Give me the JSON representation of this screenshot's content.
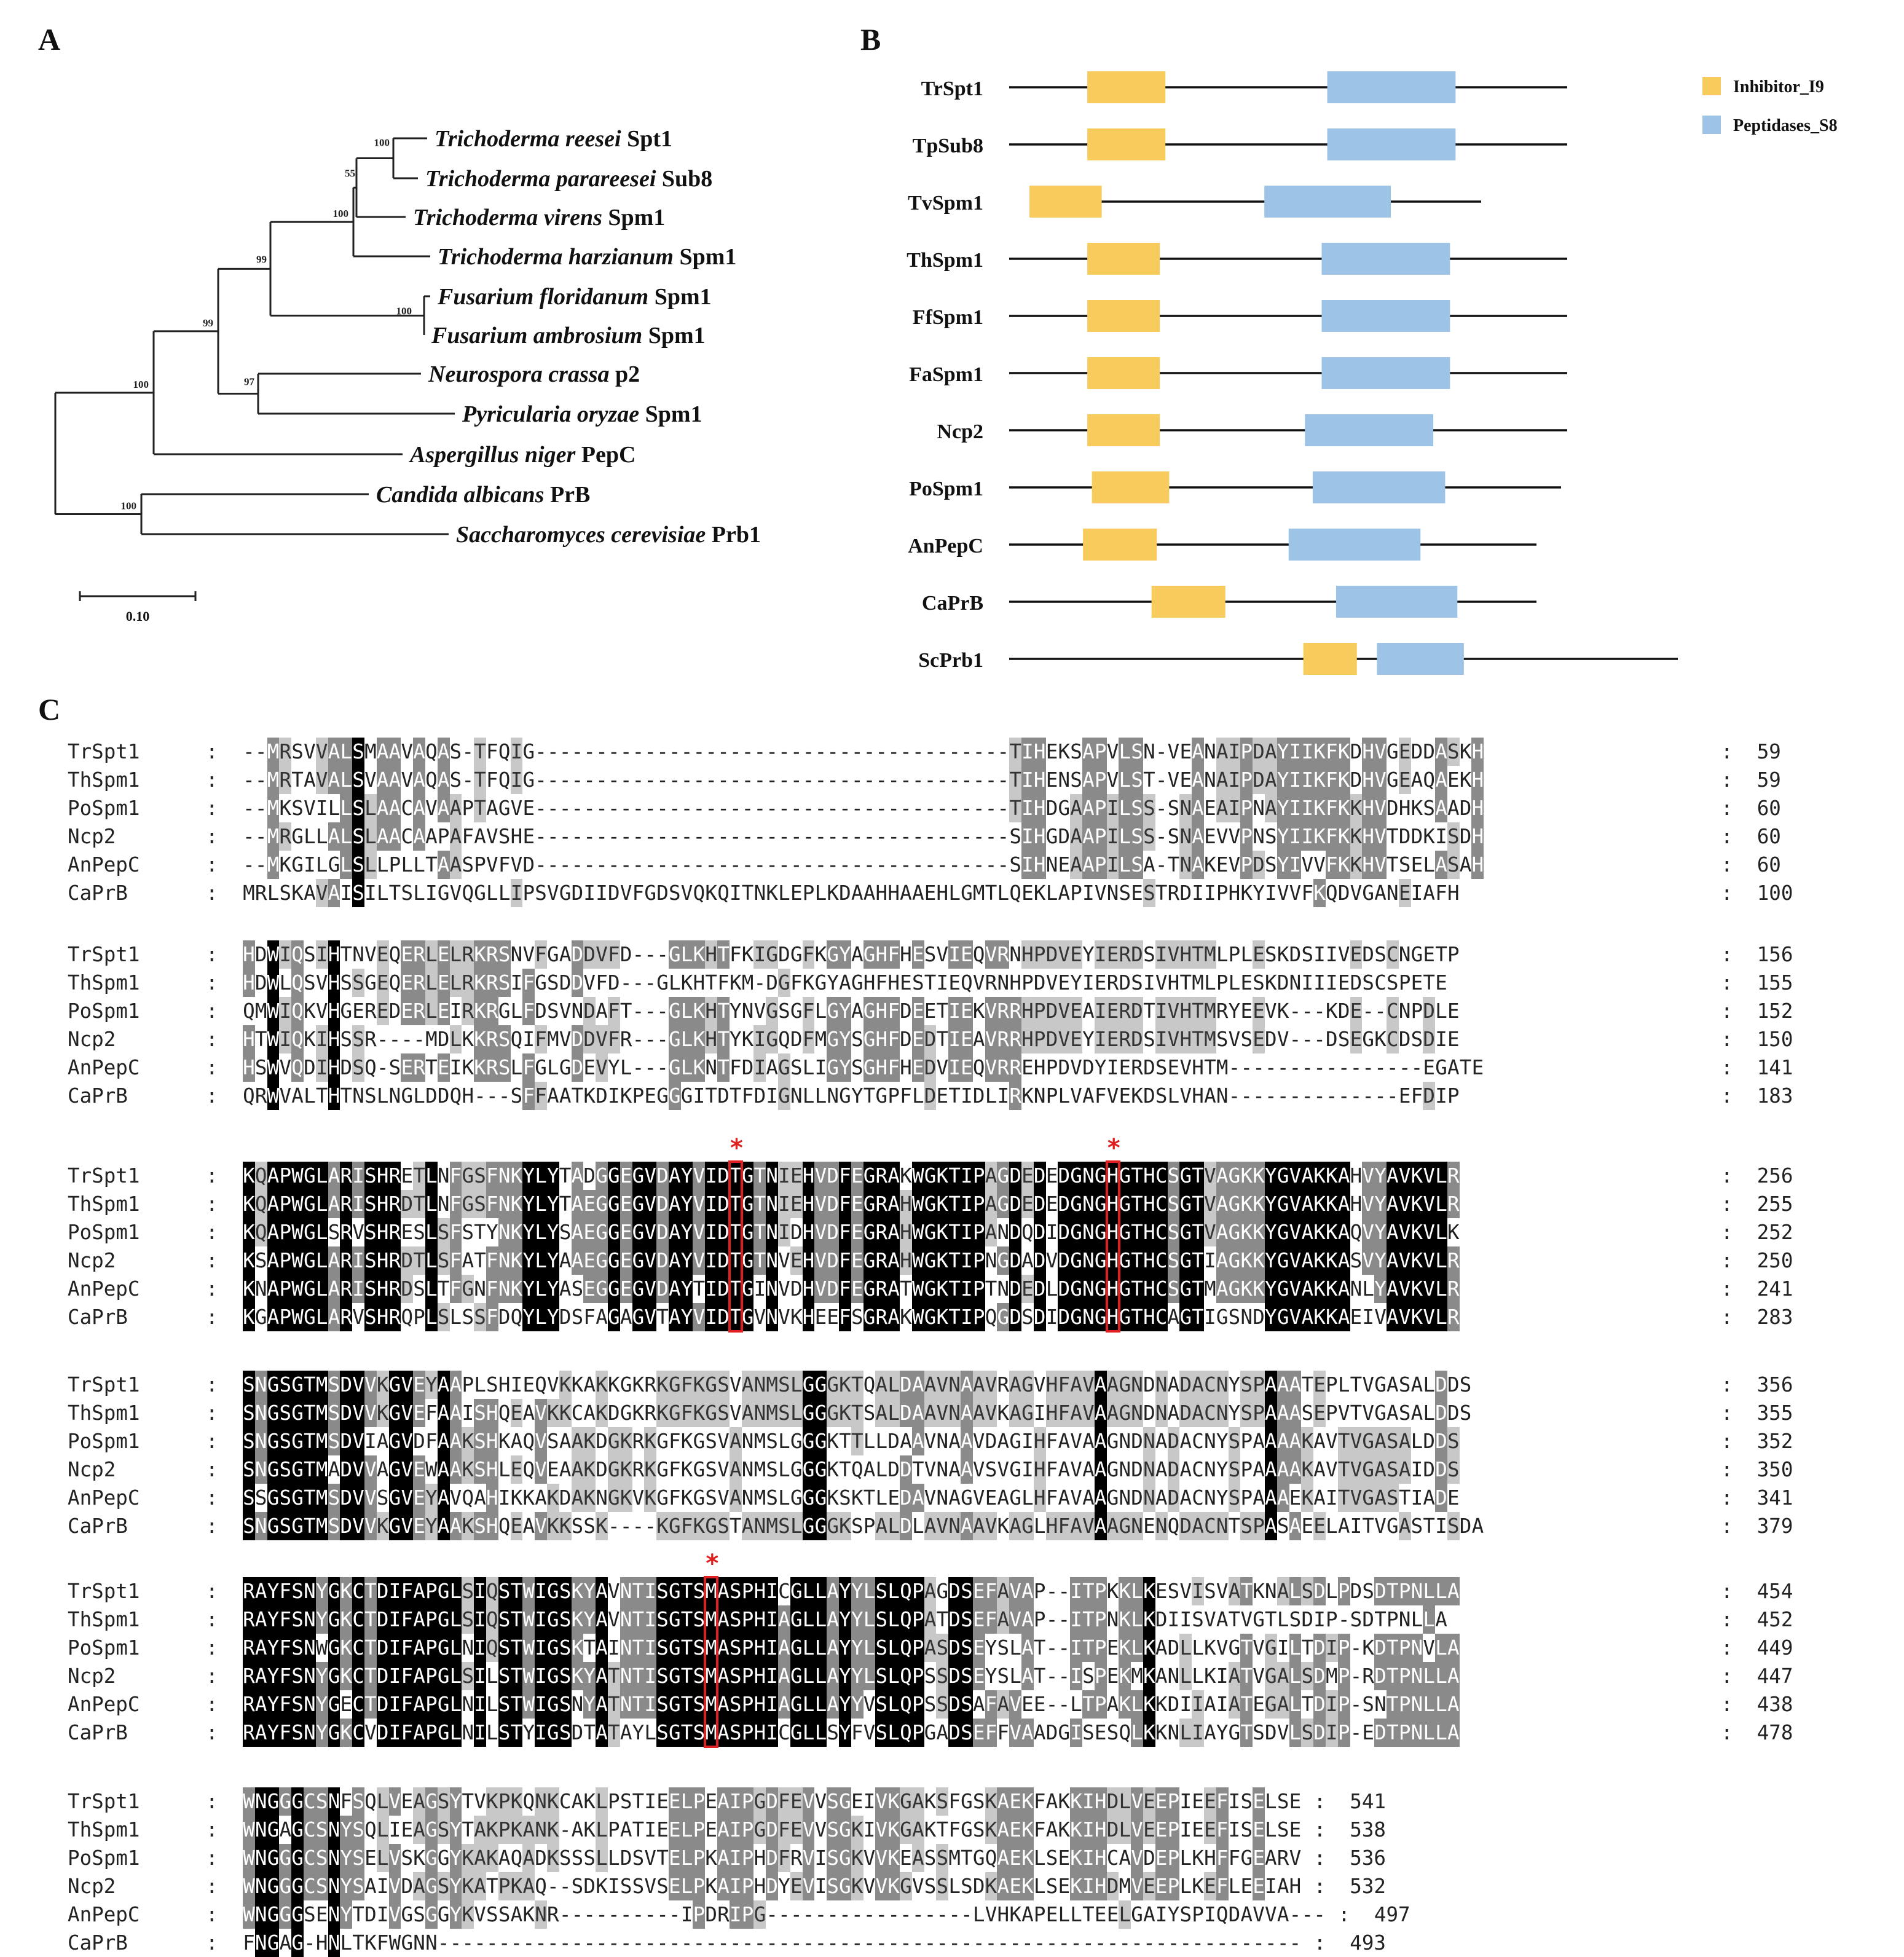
{
  "panels": {
    "a": "A",
    "b": "B",
    "c": "C"
  },
  "tree": {
    "taxa": [
      {
        "genus": "Trichoderma reesei",
        "protein": "Spt1"
      },
      {
        "genus": "Trichoderma parareesei",
        "protein": "Sub8"
      },
      {
        "genus": "Trichoderma virens",
        "protein": "Spm1"
      },
      {
        "genus": "Trichoderma harzianum",
        "protein": "Spm1"
      },
      {
        "genus": "Fusarium floridanum",
        "protein": "Spm1"
      },
      {
        "genus": "Fusarium ambrosium",
        "protein": "Spm1"
      },
      {
        "genus": "Neurospora crassa",
        "protein": "p2"
      },
      {
        "genus": "Pyricularia oryzae",
        "protein": "Spm1"
      },
      {
        "genus": "Aspergillus niger",
        "protein": "PepC"
      },
      {
        "genus": "Candida albicans",
        "protein": "PrB"
      },
      {
        "genus": "Saccharomyces cerevisiae",
        "protein": "Prb1"
      }
    ],
    "bootstrap": [
      "100",
      "55",
      "100",
      "99",
      "100",
      "99",
      "97",
      "100",
      "100"
    ],
    "scale_label": "0.10",
    "scale_value": 0.1
  },
  "domains": {
    "legend": [
      {
        "label": "Inhibitor_I9",
        "color": "#f7cc5c"
      },
      {
        "label": "Peptidases_S8",
        "color": "#9dc3e6"
      }
    ],
    "proteins": [
      {
        "name": "TrSpt1",
        "length": 1.0,
        "i9": [
          0.14,
          0.28
        ],
        "s8": [
          0.57,
          0.8
        ]
      },
      {
        "name": "TpSub8",
        "length": 1.0,
        "i9": [
          0.14,
          0.28
        ],
        "s8": [
          0.57,
          0.8
        ]
      },
      {
        "name": "TvSpm1",
        "length": 1.0,
        "i9": [
          0.0,
          0.16
        ],
        "s8": [
          0.52,
          0.8
        ]
      },
      {
        "name": "ThSpm1",
        "length": 1.0,
        "i9": [
          0.14,
          0.27
        ],
        "s8": [
          0.56,
          0.79
        ]
      },
      {
        "name": "FfSpm1",
        "length": 1.0,
        "i9": [
          0.14,
          0.27
        ],
        "s8": [
          0.56,
          0.79
        ]
      },
      {
        "name": "FaSpm1",
        "length": 1.0,
        "i9": [
          0.14,
          0.27
        ],
        "s8": [
          0.56,
          0.79
        ]
      },
      {
        "name": "Ncp2",
        "length": 1.0,
        "i9": [
          0.14,
          0.27
        ],
        "s8": [
          0.53,
          0.76
        ]
      },
      {
        "name": "PoSpm1",
        "length": 1.0,
        "i9": [
          0.15,
          0.29
        ],
        "s8": [
          0.55,
          0.79
        ]
      },
      {
        "name": "AnPepC",
        "length": 1.0,
        "i9": [
          0.14,
          0.28
        ],
        "s8": [
          0.53,
          0.78
        ]
      },
      {
        "name": "CaPrB",
        "length": 1.0,
        "i9": [
          0.27,
          0.41
        ],
        "s8": [
          0.62,
          0.85
        ]
      },
      {
        "name": "ScPrb1",
        "length": 1.0,
        "i9": [
          0.44,
          0.52
        ],
        "s8": [
          0.55,
          0.68
        ]
      }
    ]
  },
  "alignment": {
    "blocks": [
      {
        "rows": [
          {
            "name": "TrSpt1",
            "seq": "--MRSVVALSMAAVAQAS-TFQIG---------------------------------------TIHEKSAPVLSN-VEANAIPDAYIIKFKDHVGEDDASKH",
            "end": "59"
          },
          {
            "name": "ThSpm1",
            "seq": "--MRTAVALSVAAVAQAS-TFQIG---------------------------------------TIHENSAPVLST-VEANAIPDAYIIKFKDHVGEAQAEKH",
            "end": "59"
          },
          {
            "name": "PoSpm1",
            "seq": "--MKSVILLSLAACAVAAPTAGVE---------------------------------------TIHDGAAPILSS-SNAEAIPNAYIIKFKKHVDHKSAADH",
            "end": "60"
          },
          {
            "name": "Ncp2",
            "seq": "--MRGLLALSLAACAAPAFAVSHE---------------------------------------SIHGDAAPILSS-SNAEVVPNSYIIKFKKHVTDDKISDH",
            "end": "60"
          },
          {
            "name": "AnPepC",
            "seq": "--MKGILGLSLLPLLTAASPVFVD---------------------------------------SIHNEAAPILSA-TNAKEVPDSYIVVFKKHVTSELASAH",
            "end": "60"
          },
          {
            "name": "CaPrB",
            "seq": "MRLSKAVAISILTSLIGVQGLLIPSVGDIIDVFGDSVQKQITNKLEPLKDAAHHAAEHLGMTLQEKLAPIVNSESTRDIIPHKYIVVFKQDVGANEIAFH",
            "end": "100"
          }
        ]
      },
      {
        "rows": [
          {
            "name": "TrSpt1",
            "seq": "HDWIQSIHTNVEQERLELRKRSNVFGADDVFD---GLKHTFKIGDGFKGYAGHFHESVIEQVRNHPDVEYIERDSIVHTMLPLESKDSIIVEDSCNGETP",
            "end": "156"
          },
          {
            "name": "ThSpm1",
            "seq": "HDWLQSVHSSGEQERLELRKRSIFGSDDVFD---GLKHTFKM-DGFKGYAGHFHESTIEQVRNHPDVEYIERDSIVHTMLPLESKDNIIIEDSCSPETE",
            "end": "155"
          },
          {
            "name": "PoSpm1",
            "seq": "QMWIQKVHGEREDERLEIRKRGLFDSVNDAFT---GLKHTYNVGSGFLGYAGHFDEETIEKVRRHPDVEAIERDTIVHTMRYEEVK---KDE--CNPDLE",
            "end": "152"
          },
          {
            "name": "Ncp2",
            "seq": "HTWIQKIHSSR----MDLKKRSQIFMVDDVFR---GLKHTYKIGQDFMGYSGHFDEDTIEAVRRHPDVEYIERDSIVHTMSVSEDV---DSEGKCDSDIE",
            "end": "150"
          },
          {
            "name": "AnPepC",
            "seq": "HSWVQDIHDSQ-SERTEIKKRSLFGLGDEVYL---GLKNTFDIAGSLIGYSGHFHEDVIEQVRREHPDVDYIERDSEVHTM----------------EGATE",
            "end": "141"
          },
          {
            "name": "CaPrB",
            "seq": "QRWVALTHTNSLNGLDDQH---SFFAATKDIKPEGGGITDTFDIGNLLNGYTGPFLDETIDLIRKNPLVAFVEKDSLVHAN--------------EFDIP",
            "end": "183"
          }
        ]
      },
      {
        "rows": [
          {
            "name": "TrSpt1",
            "seq": "KQAPWGLARISHRETLNFGSFNKYLYTADGGEGVDAYVIDTGTNIEHVDFEGRAKWGKTIPAGDEDEDGNGHGTHCSGTVAGKKYGVAKKAHVYAVKVLR",
            "end": "256"
          },
          {
            "name": "ThSpm1",
            "seq": "KQAPWGLARISHRDTLNFGSFNKYLYTAEGGEGVDAYVIDTGTNIEHVDFEGRAHWGKTIPAGDEDEDGNGHGTHCSGTVAGKKYGVAKKAHVYAVKVLR",
            "end": "255"
          },
          {
            "name": "PoSpm1",
            "seq": "KQAPWGLSRVSHRESLSFSTYNKYLYSAEGGEGVDAYVIDTGTNIDHVDFEGRAHWGKTIPANDQDIDGNGHGTHCSGTVAGKKYGVAKKAQVYAVKVLK",
            "end": "252"
          },
          {
            "name": "Ncp2",
            "seq": "KSAPWGLARISHRDTLSFATFNKYLYAAEGGEGVDAYVIDTGTNVEHVDFEGRAHWGKTIPNGDADVDGNGHGTHCSGTIAGKKYGVAKKASVYAVKVLR",
            "end": "250"
          },
          {
            "name": "AnPepC",
            "seq": "KNAPWGLARISHRDSLTFGNFNKYLYASEGGEGVDAYTIDTGINVDHVDFEGRATWGKTIPTNDEDLDGNGHGTHCSGTMAGKKYGVAKKANLYAVKVLR",
            "end": "241"
          },
          {
            "name": "CaPrB",
            "seq": "KGAPWGLARVSHRQPLSLSSFDQYLYDSFAGAGVTAYVIDTGVNVKHEEFSGRAKWGKTIPQGDSDIDGNGHGTHCAGTIGSNDYGVAKKAEIVAVKVLR",
            "end": "283"
          }
        ],
        "markers": [
          40,
          71
        ]
      },
      {
        "rows": [
          {
            "name": "TrSpt1",
            "seq": "SNGSGTMSDVVKGVEYAAPLSHIEQVKKAKKGKRKGFKGSVANMSLGGGKTQALDAAVNAAVRAGVHFAVAAGNDNADACNYSPAAATEPLTVGASALDDS",
            "end": "356"
          },
          {
            "name": "ThSpm1",
            "seq": "SNGSGTMSDVVKGVEFAAISHQEAVKKCAKDGKRKGFKGSVANMSLGGGKTSALDAAVNAAVKAGIHFAVAAGNDNADACNYSPAAASEPVTVGASALDDS",
            "end": "355"
          },
          {
            "name": "PoSpm1",
            "seq": "SNGSGTMSDVIAGVDFAAKSHKAQVSAAKDGKRKGFKGSVANMSLGGGKTTLLDAAVNAAVDAGIHFAVAAGNDNADACNYSPAAAAKAVTVGASALDDS",
            "end": "352"
          },
          {
            "name": "Ncp2",
            "seq": "SNGSGTMADVVAGVEWAAKSHLEQVEAAKDGKRKGFKGSVANMSLGGGKTQALDDTVNAAVSVGIHFAVAAGNDNADACNYSPAAAAKAVTVGASAIDDS",
            "end": "350"
          },
          {
            "name": "AnPepC",
            "seq": "SSGSGTMSDVVSGVEYAVQAHIKKAKDAKNGKVKGFKGSVANMSLGGGKSKTLEDAVNAGVEAGLHFAVAAGNDNADACNYSPAAAEKAITVGASTIADE",
            "end": "341"
          },
          {
            "name": "CaPrB",
            "seq": "SNGSGTMSDVVKGVEYAAKSHQEAVKKSSK----KGFKGSTANMSLGGGKSPALDLAVNAAVKAGLHFAVAAGNENQDACNTSPASAEELAITVGASTISDA",
            "end": "379"
          }
        ]
      },
      {
        "rows": [
          {
            "name": "TrSpt1",
            "seq": "RAYFSNYGKCTDIFAPGLSIQSTWIGSKYAVNTISGTSMASPHICGLLAYYLSLQPAGDSEFAVAP--ITPKKLKESVISVATKNALSDLPDSDTPNLLA",
            "end": "454"
          },
          {
            "name": "ThSpm1",
            "seq": "RAYFSNYGKCTDIFAPGLSIQSTWIGSKYAVNTISGTSMASPHIAGLLAYYLSLQPATDSEFAVAP--ITPNKLKDIISVATVGTLSDIP-SDTPNLLA",
            "end": "452"
          },
          {
            "name": "PoSpm1",
            "seq": "RAYFSNWGKCTDIFAPGLNIQSTWIGSKTAINTISGTSMASPHIAGLLAYYLSLQPASDSEYSLAT--ITPEKLKADLLKVGTVGILTDIP-KDTPNVLA",
            "end": "449"
          },
          {
            "name": "Ncp2",
            "seq": "RAYFSNYGKCTDIFAPGLSILSTWIGSKYATNTISGTSMASPHIAGLLAYYLSLQPSSDSEYSLAT--ISPEKMKANLLKIATVGALSDMP-RDTPNLLA",
            "end": "447"
          },
          {
            "name": "AnPepC",
            "seq": "RAYFSNYGECTDIFAPGLNILSTWIGSNYATNTISGTSMASPHIAGLLAYYVSLQPSSDSAFAVEE--LTPAKLKKDIIAIATEGALTDIP-SNTPNLLA",
            "end": "438"
          },
          {
            "name": "CaPrB",
            "seq": "RAYFSNYGKCVDIFAPGLNILSTYIGSDTATAYLSGTSMASPHICGLLSYFVSLQPGADSEFFVAADGISESQLKKNLIAYGTSDVLSDIP-EDTPNLLA",
            "end": "478"
          }
        ],
        "markers": [
          38
        ]
      },
      {
        "rows": [
          {
            "name": "TrSpt1",
            "seq": "WNGGGCSNFSQLVEAGSYTVKPKQNKCAKLPSTIEELPEAIPGDFEVVSGEIVKGAKSFGSKAEKFAKKIHDLVEEPIEEFISELSE",
            "end": "541"
          },
          {
            "name": "ThSpm1",
            "seq": "WNGAGCSNYSQLIEAGSYTAKPKANK-AKLPATIEELPEAIPGDFEVVSGKIVKGAKTFGSKAEKFAKKIHDLVEEPIEEFISELSE",
            "end": "538"
          },
          {
            "name": "PoSpm1",
            "seq": "WNGGGCSNYSELVSKGGYKAKAQADKSSSLLDSVTELPKAIPHDFRVISGKVVKEASSMTGQAEKLSEKIHCAVDEPLKHFFGEARV",
            "end": "536"
          },
          {
            "name": "Ncp2",
            "seq": "WNGGGCSNYSAIVDAGSYKATPKAQ--SDKISSVSELPKAIPHDYEVISGKVVKGVSSLSDKAEKLSEKIHDMVEEPLKEFLEEIAH",
            "end": "532"
          },
          {
            "name": "AnPepC",
            "seq": "WNGGGSENYTDIVGSGGYKVSSAKNR----------IPDRIPG-----------------LVHKAPELLTEELGAIYSPIQDAVVA---",
            "end": "497"
          },
          {
            "name": "CaPrB",
            "seq": "FNGAG-HNLTKFWGNN-----------------------------------------------------------------------",
            "end": "493"
          }
        ]
      }
    ]
  }
}
